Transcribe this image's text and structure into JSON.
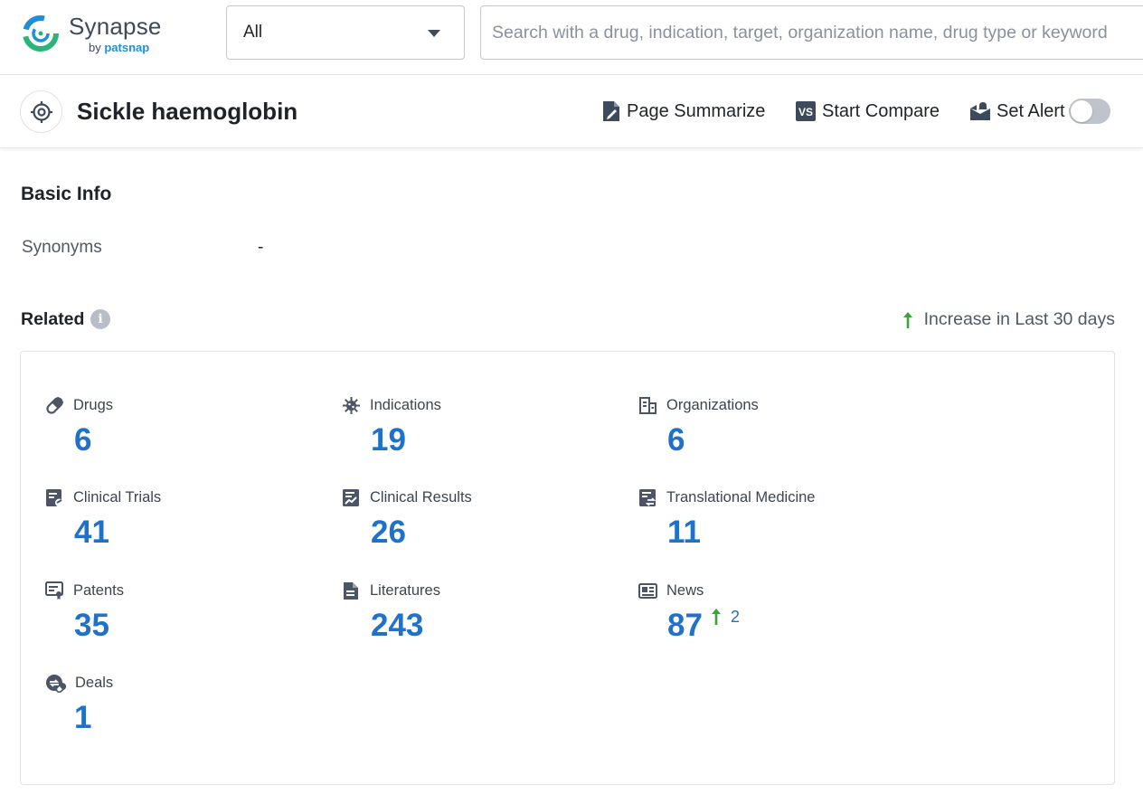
{
  "app": {
    "name": "Synapse",
    "byline_prefix": "by",
    "byline_brand": "patsnap"
  },
  "search": {
    "scope_value": "All",
    "placeholder": "Search with a drug, indication, target, organization name, drug type or keyword"
  },
  "header": {
    "title": "Sickle haemoglobin",
    "actions": {
      "summarize": "Page Summarize",
      "compare": "Start Compare",
      "alert": "Set Alert"
    },
    "alert_enabled": false
  },
  "basic_info": {
    "title": "Basic Info",
    "synonyms_label": "Synonyms",
    "synonyms_value": "-"
  },
  "related": {
    "title": "Related",
    "legend": "Increase in Last 30 days",
    "items": [
      {
        "label": "Drugs",
        "value": "6",
        "icon": "pill-icon"
      },
      {
        "label": "Indications",
        "value": "19",
        "icon": "virus-icon"
      },
      {
        "label": "Organizations",
        "value": "6",
        "icon": "building-icon"
      },
      {
        "label": "Clinical Trials",
        "value": "41",
        "icon": "clipboard-icon"
      },
      {
        "label": "Clinical Results",
        "value": "26",
        "icon": "chart-report-icon"
      },
      {
        "label": "Translational Medicine",
        "value": "11",
        "icon": "exchange-report-icon"
      },
      {
        "label": "Patents",
        "value": "35",
        "icon": "certificate-icon"
      },
      {
        "label": "Literatures",
        "value": "243",
        "icon": "document-icon"
      },
      {
        "label": "News",
        "value": "87",
        "icon": "newspaper-icon",
        "increase": "2"
      },
      {
        "label": "Deals",
        "value": "1",
        "icon": "handshake-icon"
      }
    ]
  },
  "colors": {
    "accent": "#1f71c9",
    "increase": "#3aa33a",
    "icon": "#4b5565"
  }
}
